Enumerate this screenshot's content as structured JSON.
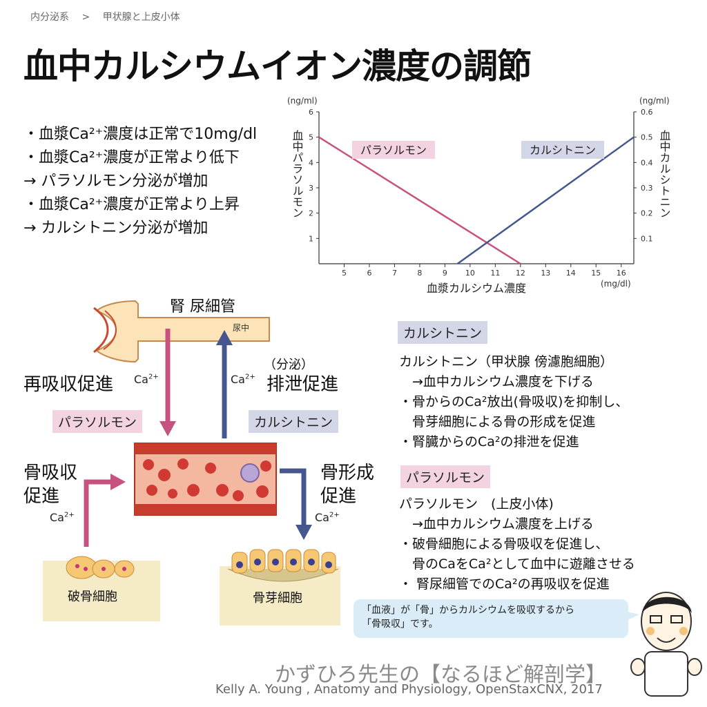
{
  "breadcrumb": {
    "section": "内分泌系",
    "separator": ">",
    "topic": "甲状腺と上皮小体"
  },
  "title": "血中カルシウムイオン濃度の調節",
  "bullets": {
    "line1": "・血漿Ca²⁺濃度は正常で10mg/dl",
    "line2": "・血漿Ca²⁺濃度が正常より低下",
    "line3": " → パラソルモン分泌が増加",
    "line4": "・血漿Ca²⁺濃度が正常より上昇",
    "line5": " → カルシトニン分泌が増加"
  },
  "chart_data": {
    "type": "line",
    "x": [
      4,
      16.5
    ],
    "xlabel": "血漿カルシウム濃度",
    "xunit": "(mg/dl)",
    "xticks": [
      5,
      6,
      7,
      8,
      9,
      10,
      11,
      12,
      13,
      14,
      15,
      16
    ],
    "xlim": [
      4,
      16.5
    ],
    "y_left": {
      "label": "血中パラソルモン",
      "unit": "(ng/ml)",
      "ticks": [
        1,
        2,
        3,
        4,
        5,
        6
      ],
      "lim": [
        0,
        6
      ]
    },
    "y_right": {
      "label": "血中カルシトニン",
      "unit": "(ng/ml)",
      "ticks": [
        "0.1",
        "0.2",
        "0.3",
        "0.4",
        "0.5",
        "0.6"
      ],
      "lim": [
        0,
        0.6
      ]
    },
    "series": [
      {
        "name": "パラソルモン",
        "axis": "left",
        "color": "#c8527f",
        "points": [
          [
            4,
            5
          ],
          [
            12,
            0
          ]
        ]
      },
      {
        "name": "カルシトニン",
        "axis": "right",
        "color": "#46578f",
        "points": [
          [
            9.5,
            0
          ],
          [
            16.5,
            0.5
          ]
        ]
      }
    ]
  },
  "diagram": {
    "kidney_label": "腎 尿細管",
    "urine_label": "尿中",
    "reabsorb_label": "再吸収促進",
    "secrete_label": "（分泌）",
    "excrete_label": "排泄促進",
    "pth_tag": "パラソルモン",
    "ct_tag": "カルシトニン",
    "bone_resorb_1": "骨吸収",
    "bone_resorb_2": "促進",
    "bone_form_1": "骨形成",
    "bone_form_2": "促進",
    "ca": "Ca",
    "ca_sup": "2+",
    "osteoclast": "破骨細胞",
    "osteoblast": "骨芽細胞"
  },
  "calcitonin_panel": {
    "heading": "カルシトニン",
    "line1": "カルシトニン（甲状腺 傍濾胞細胞）",
    "line2": "　→血中カルシウム濃度を下げる",
    "line3": "・骨からのCa²放出(骨吸収)を抑制し、",
    "line4": "　骨芽細胞による骨の形成を促進",
    "line5": "・腎臓からのCa²の排泄を促進"
  },
  "pth_panel": {
    "heading": "パラソルモン",
    "line1": "パラソルモン　(上皮小体)",
    "line2": "　→血中カルシウム濃度を上げる",
    "line3": "・破骨細胞による骨吸収を促進し、",
    "line4": "　骨のCaをCa²として血中に遊離させる",
    "line5": "・ 腎尿細管でのCa²の再吸収を促進"
  },
  "bubble": {
    "line1": "「血液」が「骨」からカルシウムを吸収するから",
    "line2": "「骨吸収」です。"
  },
  "credit": {
    "brand": "かずひろ先生の【なるほど解剖学】",
    "source": "Kelly A. Young , Anatomy and Physiology, OpenStaxCNX, 2017"
  },
  "colors": {
    "pth": "#c8527f",
    "ct": "#46578f",
    "pth_tag_bg": "#f3d3e1",
    "ct_tag_bg": "#d2d6e6",
    "bubble_bg": "#d9ecf8"
  }
}
